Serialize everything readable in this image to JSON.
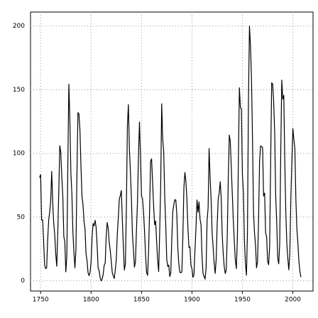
{
  "chart_data": {
    "type": "line",
    "x": [
      1749,
      1750,
      1751,
      1752,
      1753,
      1754,
      1755,
      1756,
      1757,
      1758,
      1759,
      1760,
      1761,
      1762,
      1763,
      1764,
      1765,
      1766,
      1767,
      1768,
      1769,
      1770,
      1771,
      1772,
      1773,
      1774,
      1775,
      1776,
      1777,
      1778,
      1779,
      1780,
      1781,
      1782,
      1783,
      1784,
      1785,
      1786,
      1787,
      1788,
      1789,
      1790,
      1791,
      1792,
      1793,
      1794,
      1795,
      1796,
      1797,
      1798,
      1799,
      1800,
      1801,
      1802,
      1803,
      1804,
      1805,
      1806,
      1807,
      1808,
      1809,
      1810,
      1811,
      1812,
      1813,
      1814,
      1815,
      1816,
      1817,
      1818,
      1819,
      1820,
      1821,
      1822,
      1823,
      1824,
      1825,
      1826,
      1827,
      1828,
      1829,
      1830,
      1831,
      1832,
      1833,
      1834,
      1835,
      1836,
      1837,
      1838,
      1839,
      1840,
      1841,
      1842,
      1843,
      1844,
      1845,
      1846,
      1847,
      1848,
      1849,
      1850,
      1851,
      1852,
      1853,
      1854,
      1855,
      1856,
      1857,
      1858,
      1859,
      1860,
      1861,
      1862,
      1863,
      1864,
      1865,
      1866,
      1867,
      1868,
      1869,
      1870,
      1871,
      1872,
      1873,
      1874,
      1875,
      1876,
      1877,
      1878,
      1879,
      1880,
      1881,
      1882,
      1883,
      1884,
      1885,
      1886,
      1887,
      1888,
      1889,
      1890,
      1891,
      1892,
      1893,
      1894,
      1895,
      1896,
      1897,
      1898,
      1899,
      1900,
      1901,
      1902,
      1903,
      1904,
      1905,
      1906,
      1907,
      1908,
      1909,
      1910,
      1911,
      1912,
      1913,
      1914,
      1915,
      1916,
      1917,
      1918,
      1919,
      1920,
      1921,
      1922,
      1923,
      1924,
      1925,
      1926,
      1927,
      1928,
      1929,
      1930,
      1931,
      1932,
      1933,
      1934,
      1935,
      1936,
      1937,
      1938,
      1939,
      1940,
      1941,
      1942,
      1943,
      1944,
      1945,
      1946,
      1947,
      1948,
      1949,
      1950,
      1951,
      1952,
      1953,
      1954,
      1955,
      1956,
      1957,
      1958,
      1959,
      1960,
      1961,
      1962,
      1963,
      1964,
      1965,
      1966,
      1967,
      1968,
      1969,
      1970,
      1971,
      1972,
      1973,
      1974,
      1975,
      1976,
      1977,
      1978,
      1979,
      1980,
      1981,
      1982,
      1983,
      1984,
      1985,
      1986,
      1987,
      1988,
      1989,
      1990,
      1991,
      1992,
      1993,
      1994,
      1995,
      1996,
      1997,
      1998,
      1999,
      2000,
      2001,
      2002,
      2003,
      2004,
      2005,
      2006,
      2007,
      2008
    ],
    "series": [
      {
        "color": "#000000",
        "values": [
          80.9,
          83.4,
          47.7,
          47.8,
          30.7,
          12.2,
          9.6,
          10.2,
          32.4,
          47.6,
          54.0,
          62.9,
          85.9,
          61.2,
          45.1,
          36.4,
          20.9,
          11.4,
          37.8,
          69.8,
          106.1,
          100.8,
          81.6,
          66.5,
          34.8,
          30.6,
          7.0,
          19.8,
          92.5,
          154.4,
          125.9,
          84.8,
          68.1,
          38.5,
          22.8,
          10.2,
          24.1,
          82.9,
          132.0,
          130.9,
          118.1,
          89.9,
          66.6,
          60.0,
          46.9,
          41.0,
          21.3,
          16.0,
          6.4,
          4.1,
          6.8,
          14.5,
          34.0,
          45.0,
          43.1,
          47.5,
          42.2,
          28.1,
          10.1,
          8.1,
          2.5,
          0.0,
          1.4,
          5.0,
          12.2,
          13.9,
          35.4,
          45.8,
          41.1,
          30.1,
          23.9,
          15.6,
          6.6,
          4.0,
          1.8,
          8.5,
          16.6,
          36.3,
          49.6,
          64.2,
          67.0,
          70.9,
          47.8,
          27.5,
          8.5,
          13.2,
          56.9,
          121.5,
          138.3,
          103.2,
          85.7,
          64.6,
          36.7,
          24.2,
          10.7,
          15.0,
          40.1,
          61.5,
          98.5,
          124.7,
          96.3,
          66.6,
          64.5,
          54.1,
          39.0,
          20.6,
          6.7,
          4.3,
          22.7,
          54.8,
          93.8,
          95.8,
          77.2,
          59.1,
          44.0,
          47.0,
          30.5,
          16.3,
          7.3,
          37.6,
          74.0,
          139.0,
          111.2,
          101.6,
          66.2,
          44.7,
          17.0,
          11.3,
          12.4,
          3.4,
          6.0,
          32.3,
          54.3,
          59.7,
          63.7,
          63.5,
          52.2,
          25.4,
          13.1,
          6.8,
          6.3,
          7.1,
          35.6,
          73.0,
          85.1,
          78.0,
          64.0,
          41.8,
          26.2,
          26.7,
          12.1,
          9.5,
          2.7,
          5.0,
          24.4,
          42.0,
          63.5,
          53.8,
          62.0,
          48.5,
          43.9,
          18.6,
          5.7,
          3.6,
          1.4,
          9.6,
          47.4,
          57.1,
          103.9,
          80.6,
          63.6,
          37.6,
          26.1,
          14.2,
          5.8,
          16.7,
          44.3,
          63.9,
          69.0,
          77.8,
          64.9,
          35.7,
          21.2,
          11.1,
          5.7,
          8.7,
          36.1,
          79.7,
          114.4,
          109.6,
          88.8,
          67.8,
          47.5,
          30.6,
          16.3,
          9.6,
          33.2,
          92.6,
          151.6,
          136.3,
          134.7,
          83.9,
          69.4,
          31.5,
          13.9,
          4.4,
          38.0,
          141.7,
          200.0,
          184.8,
          159.0,
          112.3,
          53.9,
          37.6,
          27.9,
          10.2,
          15.1,
          47.0,
          93.8,
          105.9,
          105.5,
          104.5,
          66.6,
          68.9,
          38.0,
          34.5,
          15.5,
          12.6,
          27.5,
          92.5,
          155.4,
          154.6,
          140.4,
          115.9,
          66.6,
          45.9,
          17.9,
          13.4,
          29.4,
          100.2,
          157.6,
          142.6,
          145.7,
          94.3,
          54.6,
          29.9,
          17.5,
          8.6,
          21.5,
          64.3,
          93.3,
          119.6,
          111.0,
          104.0,
          63.7,
          40.4,
          29.8,
          15.2,
          7.5,
          2.9
        ]
      }
    ],
    "xlim": [
      1740,
      2020
    ],
    "ylim": [
      -8,
      211
    ],
    "xticks": [
      1750,
      1800,
      1850,
      1900,
      1950,
      2000
    ],
    "yticks": [
      0,
      50,
      100,
      150,
      200
    ],
    "grid": true
  }
}
